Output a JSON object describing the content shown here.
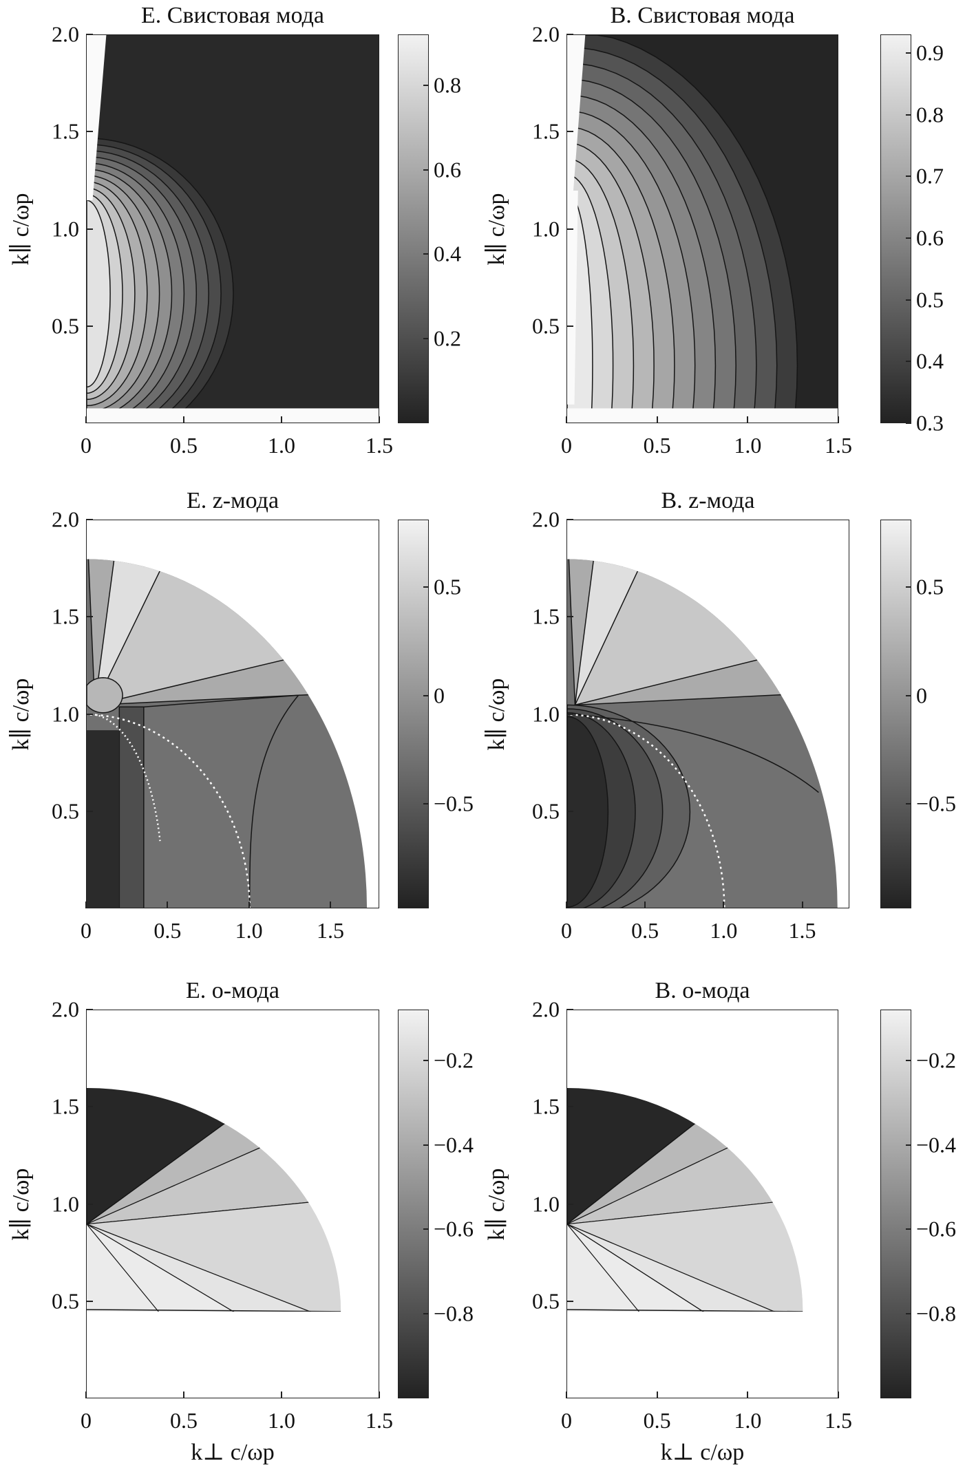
{
  "axis_labels": {
    "y": "k∥ c/ωp",
    "x": "k⊥ c/ωp"
  },
  "chart_data": [
    {
      "type": "heatmap",
      "title": "E. Свистовая мода",
      "mode": "whistler",
      "field": "E",
      "xlim": [
        0,
        1.5
      ],
      "ylim": [
        0,
        2.0
      ],
      "xticks": [
        "0",
        "0.5",
        "1.0",
        "1.5"
      ],
      "xtick_values": [
        0,
        0.5,
        1.0,
        1.5
      ],
      "yticks": [
        "0.5",
        "1.0",
        "1.5",
        "2.0"
      ],
      "ytick_values": [
        0.5,
        1.0,
        1.5,
        2.0
      ],
      "colorbar": {
        "range": [
          0,
          0.92
        ],
        "ticks": [
          "0.2",
          "0.4",
          "0.6",
          "0.8"
        ],
        "tick_values": [
          0.2,
          0.4,
          0.6,
          0.8
        ]
      },
      "contour_levels": [
        0.1,
        0.18,
        0.25,
        0.33,
        0.4,
        0.48,
        0.55,
        0.62,
        0.7,
        0.78,
        0.85
      ],
      "background_value": 0.03
    },
    {
      "type": "heatmap",
      "title": "B. Свистовая мода",
      "mode": "whistler",
      "field": "B",
      "xlim": [
        0,
        1.5
      ],
      "ylim": [
        0,
        2.0
      ],
      "xticks": [
        "0",
        "0.5",
        "1.0",
        "1.5"
      ],
      "xtick_values": [
        0,
        0.5,
        1.0,
        1.5
      ],
      "yticks": [
        "0.5",
        "1.0",
        "1.5",
        "2.0"
      ],
      "ytick_values": [
        0.5,
        1.0,
        1.5,
        2.0
      ],
      "colorbar": {
        "range": [
          0.3,
          0.93
        ],
        "ticks": [
          "0.3",
          "0.4",
          "0.5",
          "0.6",
          "0.7",
          "0.8",
          "0.9"
        ],
        "tick_values": [
          0.3,
          0.4,
          0.5,
          0.6,
          0.7,
          0.8,
          0.9
        ]
      },
      "contour_levels": [
        0.38,
        0.45,
        0.5,
        0.55,
        0.6,
        0.65,
        0.7,
        0.75,
        0.8,
        0.85,
        0.9
      ],
      "background_value": 0.31
    },
    {
      "type": "heatmap",
      "title": "E. z-мода",
      "mode": "z",
      "field": "E",
      "xlim": [
        0,
        1.8
      ],
      "ylim": [
        0,
        2.0
      ],
      "xticks": [
        "0",
        "0.5",
        "1.0",
        "1.5"
      ],
      "xtick_values": [
        0,
        0.5,
        1.0,
        1.5
      ],
      "yticks": [
        "0.5",
        "1.0",
        "1.5",
        "2.0"
      ],
      "ytick_values": [
        0.5,
        1.0,
        1.5,
        2.0
      ],
      "colorbar": {
        "range": [
          -0.98,
          0.81
        ],
        "ticks": [
          "0.5",
          "0",
          "−0.5"
        ],
        "tick_values": [
          0.5,
          0,
          -0.5
        ]
      },
      "contour_levels": [
        -0.9,
        -0.6,
        -0.3,
        0.2,
        0.45,
        0.65
      ]
    },
    {
      "type": "heatmap",
      "title": "B. z-мода",
      "mode": "z",
      "field": "B",
      "xlim": [
        0,
        1.8
      ],
      "ylim": [
        0,
        2.0
      ],
      "xticks": [
        "0",
        "0.5",
        "1.0",
        "1.5"
      ],
      "xtick_values": [
        0,
        0.5,
        1.0,
        1.5
      ],
      "yticks": [
        "0.5",
        "1.0",
        "1.5",
        "2.0"
      ],
      "ytick_values": [
        0.5,
        1.0,
        1.5,
        2.0
      ],
      "colorbar": {
        "range": [
          -0.98,
          0.81
        ],
        "ticks": [
          "0.5",
          "0",
          "−0.5"
        ],
        "tick_values": [
          0.5,
          0,
          -0.5
        ]
      },
      "contour_levels": [
        -0.9,
        -0.75,
        -0.6,
        -0.45,
        -0.3,
        0.0,
        0.3,
        0.5,
        0.65
      ]
    },
    {
      "type": "heatmap",
      "title": "E. o-мода",
      "mode": "o",
      "field": "E",
      "xlim": [
        0,
        1.5
      ],
      "ylim": [
        0,
        2.0
      ],
      "xticks": [
        "0",
        "0.5",
        "1.0",
        "1.5"
      ],
      "xtick_values": [
        0,
        0.5,
        1.0,
        1.5
      ],
      "yticks": [
        "0.5",
        "1.0",
        "1.5",
        "2.0"
      ],
      "ytick_values": [
        0.5,
        1.0,
        1.5,
        2.0
      ],
      "colorbar": {
        "range": [
          -1.0,
          -0.08
        ],
        "ticks": [
          "−0.2",
          "−0.4",
          "−0.6",
          "−0.8"
        ],
        "tick_values": [
          -0.2,
          -0.4,
          -0.6,
          -0.8
        ]
      },
      "contour_levels": [
        -0.98,
        -0.85,
        -0.75,
        -0.65,
        -0.55,
        -0.47,
        -0.4,
        -0.33,
        -0.27,
        -0.2,
        -0.14,
        -0.11
      ]
    },
    {
      "type": "heatmap",
      "title": "B. o-мода",
      "mode": "o",
      "field": "B",
      "xlim": [
        0,
        1.5
      ],
      "ylim": [
        0,
        2.0
      ],
      "xticks": [
        "0",
        "0.5",
        "1.0",
        "1.5"
      ],
      "xtick_values": [
        0,
        0.5,
        1.0,
        1.5
      ],
      "yticks": [
        "0.5",
        "1.0",
        "1.5",
        "2.0"
      ],
      "ytick_values": [
        0.5,
        1.0,
        1.5,
        2.0
      ],
      "colorbar": {
        "range": [
          -1.0,
          -0.08
        ],
        "ticks": [
          "−0.2",
          "−0.4",
          "−0.6",
          "−0.8"
        ],
        "tick_values": [
          -0.2,
          -0.4,
          -0.6,
          -0.8
        ]
      },
      "contour_levels": [
        -0.98,
        -0.85,
        -0.75,
        -0.65,
        -0.55,
        -0.47,
        -0.4,
        -0.33,
        -0.27,
        -0.2,
        -0.14,
        -0.11
      ]
    }
  ]
}
